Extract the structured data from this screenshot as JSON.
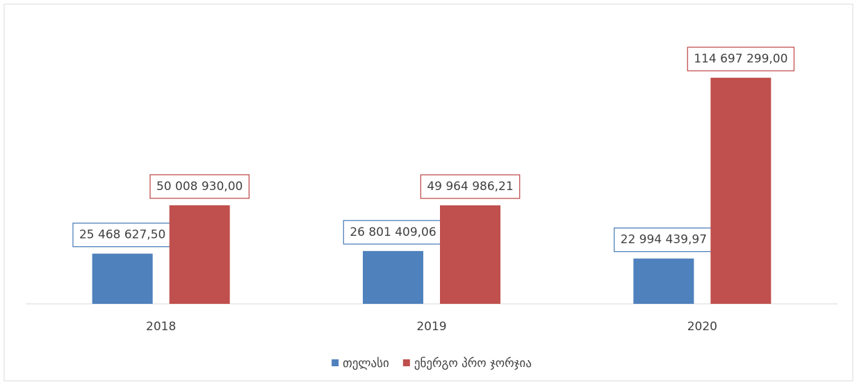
{
  "chart_data": {
    "type": "bar",
    "categories": [
      "2018",
      "2019",
      "2020"
    ],
    "series": [
      {
        "name": "თელასი",
        "color": "#4f81bd",
        "values": [
          25468627.5,
          26801409.06,
          22994439.97
        ],
        "value_labels": [
          "25 468 627,50",
          "26 801 409,06",
          "22 994 439,97"
        ]
      },
      {
        "name": "ენერგო პრო ჯორჯია",
        "color": "#c0504d",
        "values": [
          50008930.0,
          49964986.21,
          114697299.0
        ],
        "value_labels": [
          "50 008 930,00",
          "49 964 986,21",
          "114 697 299,00"
        ]
      }
    ],
    "ylim": [
      0,
      120000000
    ],
    "legend": "bottom"
  }
}
